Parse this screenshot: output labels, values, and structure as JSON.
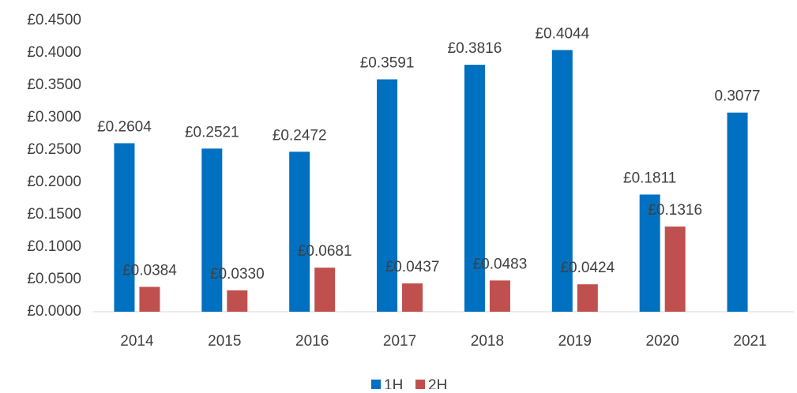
{
  "chart_data": {
    "type": "bar",
    "categories": [
      "2014",
      "2015",
      "2016",
      "2017",
      "2018",
      "2019",
      "2020",
      "2021"
    ],
    "series": [
      {
        "name": "1H",
        "color": "#0070c0",
        "values": [
          0.2604,
          0.2521,
          0.2472,
          0.3591,
          0.3816,
          0.4044,
          0.1811,
          0.3077
        ],
        "value_labels": [
          "£0.2604",
          "£0.2521",
          "£0.2472",
          "£0.3591",
          "£0.3816",
          "£0.4044",
          "£0.1811",
          "0.3077"
        ]
      },
      {
        "name": "2H",
        "color": "#c0504d",
        "values": [
          0.0384,
          0.033,
          0.0681,
          0.0437,
          0.0483,
          0.0424,
          0.1316,
          null
        ],
        "value_labels": [
          "£0.0384",
          "£0.0330",
          "£0.0681",
          "£0.0437",
          "£0.0483",
          "£0.0424",
          "£0.1316",
          null
        ]
      }
    ],
    "ylim": [
      0,
      0.45
    ],
    "yticks": [
      {
        "value": 0,
        "label": "£0.0000"
      },
      {
        "value": 0.05,
        "label": "£0.0500"
      },
      {
        "value": 0.1,
        "label": "£0.1000"
      },
      {
        "value": 0.15,
        "label": "£0.1500"
      },
      {
        "value": 0.2,
        "label": "£0.2000"
      },
      {
        "value": 0.25,
        "label": "£0.2500"
      },
      {
        "value": 0.3,
        "label": "£0.3000"
      },
      {
        "value": 0.35,
        "label": "£0.3500"
      },
      {
        "value": 0.4,
        "label": "£0.4000"
      },
      {
        "value": 0.45,
        "label": "£0.4500"
      }
    ],
    "legend": "bottom"
  }
}
